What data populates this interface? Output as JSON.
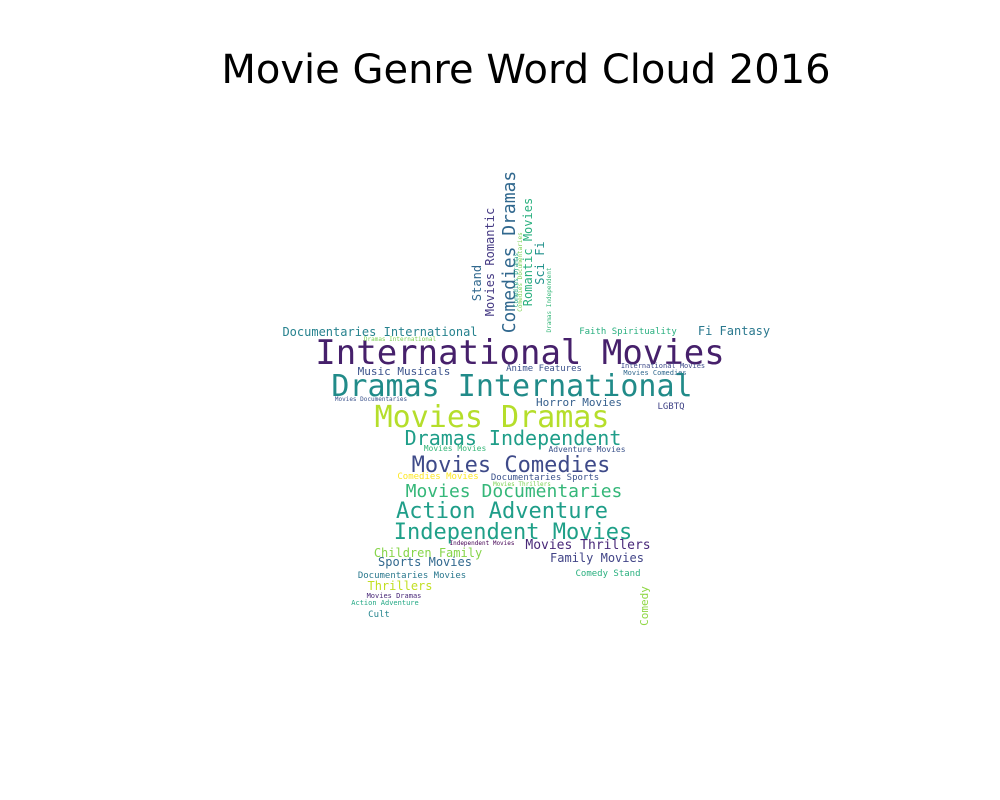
{
  "title": "Movie Genre Word Cloud 2016",
  "words": [
    {
      "text": "International Movies",
      "color": "#46206b"
    },
    {
      "text": "Dramas International",
      "color": "#218b89"
    },
    {
      "text": "Movies Dramas",
      "color": "#b5de2b"
    },
    {
      "text": "Dramas Independent",
      "color": "#1f9e89"
    },
    {
      "text": "Movies Comedies",
      "color": "#3e4a89"
    },
    {
      "text": "Movies Documentaries",
      "color": "#35b779"
    },
    {
      "text": "Action Adventure",
      "color": "#1f9e89"
    },
    {
      "text": "Independent Movies",
      "color": "#1fa088"
    },
    {
      "text": "Comedies Dramas",
      "color": "#31688e"
    },
    {
      "text": "Documentaries International",
      "color": "#26828e"
    },
    {
      "text": "Music Musicals",
      "color": "#3b528b"
    },
    {
      "text": "Anime Features",
      "color": "#3b528b"
    },
    {
      "text": "Horror Movies",
      "color": "#355f8d"
    },
    {
      "text": "LGBTQ",
      "color": "#414487"
    },
    {
      "text": "Fi Fantasy",
      "color": "#2a788e"
    },
    {
      "text": "Faith Spirituality",
      "color": "#29af7f"
    },
    {
      "text": "Movies Romantic",
      "color": "#443983"
    },
    {
      "text": "Stand",
      "color": "#31688e"
    },
    {
      "text": "Romantic Movies",
      "color": "#2ab07f"
    },
    {
      "text": "Sci Fi",
      "color": "#21918c"
    },
    {
      "text": "Comedies Movies",
      "color": "#fde725"
    },
    {
      "text": "Documentaries Sports",
      "color": "#3b528b"
    },
    {
      "text": "Movies Thrillers",
      "color": "#482878"
    },
    {
      "text": "Children Family",
      "color": "#86d549"
    },
    {
      "text": "Sports Movies",
      "color": "#31688e"
    },
    {
      "text": "Family Movies",
      "color": "#414487"
    },
    {
      "text": "Thrillers",
      "color": "#c2df23"
    },
    {
      "text": "Documentaries Movies",
      "color": "#2a788e"
    },
    {
      "text": "Comedy Stand",
      "color": "#2ab07f"
    },
    {
      "text": "Comedy",
      "color": "#8fd744"
    },
    {
      "text": "Movies Dramas",
      "color": "#482878"
    },
    {
      "text": "Action Adventure",
      "color": "#22a884"
    },
    {
      "text": "Cult",
      "color": "#25858e"
    },
    {
      "text": "Movies Documentaries",
      "color": "#3b528b"
    },
    {
      "text": "International Movies",
      "color": "#3e4a89"
    },
    {
      "text": "Movies Comedies",
      "color": "#31688e"
    },
    {
      "text": "Dramas International",
      "color": "#7ad151"
    },
    {
      "text": "Movies Movies",
      "color": "#35b779"
    },
    {
      "text": "Adventure Movies",
      "color": "#3b528b"
    },
    {
      "text": "Independent Movies",
      "color": "#440154"
    },
    {
      "text": "Movies Thrillers",
      "color": "#7ad151"
    },
    {
      "text": "Dramas Independent",
      "color": "#35b779"
    },
    {
      "text": "Comedies Documentaries",
      "color": "#7ad151"
    },
    {
      "text": "Comedies Dramas",
      "color": "#22a884"
    }
  ]
}
